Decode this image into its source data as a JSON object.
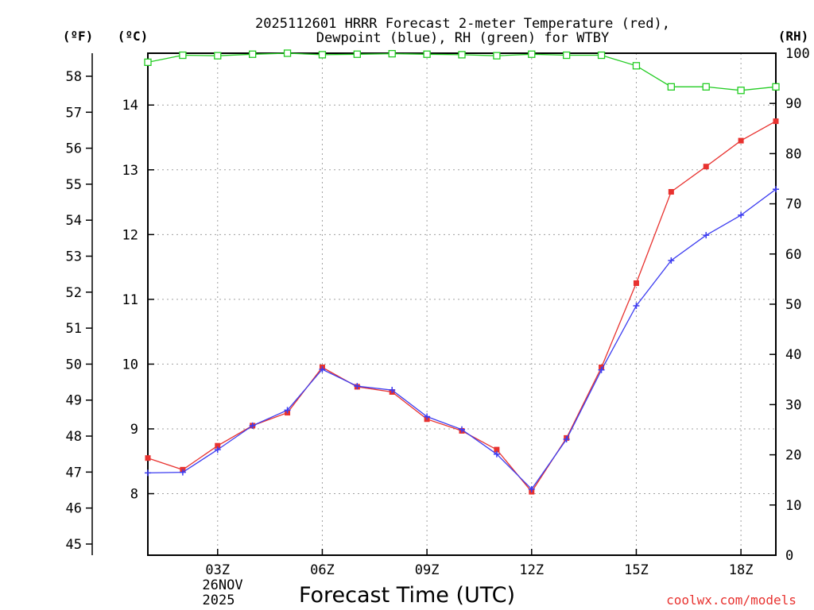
{
  "chart_data": {
    "type": "line",
    "title_line1": "2025112601 HRRR Forecast 2-meter Temperature (red),",
    "title_line2": "Dewpoint (blue), RH (green) for WTBY",
    "xlabel": "Forecast Time (UTC)",
    "x": [
      1,
      2,
      3,
      4,
      5,
      6,
      7,
      8,
      9,
      10,
      11,
      12,
      13,
      14,
      15,
      16,
      17,
      18,
      19
    ],
    "x_range": [
      1,
      19
    ],
    "x_ticks": [
      {
        "x": 3,
        "label": "03Z"
      },
      {
        "x": 6,
        "label": "06Z"
      },
      {
        "x": 9,
        "label": "09Z"
      },
      {
        "x": 12,
        "label": "12Z"
      },
      {
        "x": 15,
        "label": "15Z"
      },
      {
        "x": 18,
        "label": "18Z"
      }
    ],
    "date_label_line1": "26NOV",
    "date_label_line2": "2025",
    "left_unit_f": "(ºF)",
    "left_unit_c": "(ºC)",
    "right_unit": "(RH)",
    "celsius_range": [
      7.05,
      14.8
    ],
    "celsius_ticks": [
      "8",
      "9",
      "10",
      "11",
      "12",
      "13",
      "14"
    ],
    "fahrenheit_ticks": [
      "45",
      "46",
      "47",
      "48",
      "49",
      "50",
      "51",
      "52",
      "53",
      "54",
      "55",
      "56",
      "57",
      "58"
    ],
    "rh_range": [
      0,
      100
    ],
    "rh_ticks": [
      "0",
      "10",
      "20",
      "30",
      "40",
      "50",
      "60",
      "70",
      "80",
      "90",
      "100"
    ],
    "series": [
      {
        "name": "Temperature",
        "axis": "celsius",
        "color": "#e8322f",
        "marker": "square-filled",
        "values": [
          8.55,
          8.37,
          8.74,
          9.05,
          9.25,
          9.95,
          9.65,
          9.57,
          9.15,
          8.97,
          8.68,
          8.03,
          8.86,
          9.95,
          11.25,
          12.66,
          13.05,
          13.45,
          13.75
        ]
      },
      {
        "name": "Dewpoint",
        "axis": "celsius",
        "color": "#3c3cf0",
        "marker": "plus",
        "values": [
          8.32,
          8.33,
          8.68,
          9.05,
          9.29,
          9.92,
          9.66,
          9.6,
          9.19,
          8.99,
          8.61,
          8.07,
          8.84,
          9.91,
          10.9,
          11.6,
          11.99,
          12.3,
          12.7
        ]
      },
      {
        "name": "RH",
        "axis": "rh",
        "color": "#22cc22",
        "marker": "square-open",
        "values": [
          98.2,
          99.6,
          99.5,
          99.8,
          100,
          99.7,
          99.8,
          99.9,
          99.8,
          99.7,
          99.5,
          99.8,
          99.6,
          99.6,
          97.5,
          93.3,
          93.3,
          92.6,
          93.3
        ]
      }
    ],
    "credit": "coolwx.com/models"
  }
}
